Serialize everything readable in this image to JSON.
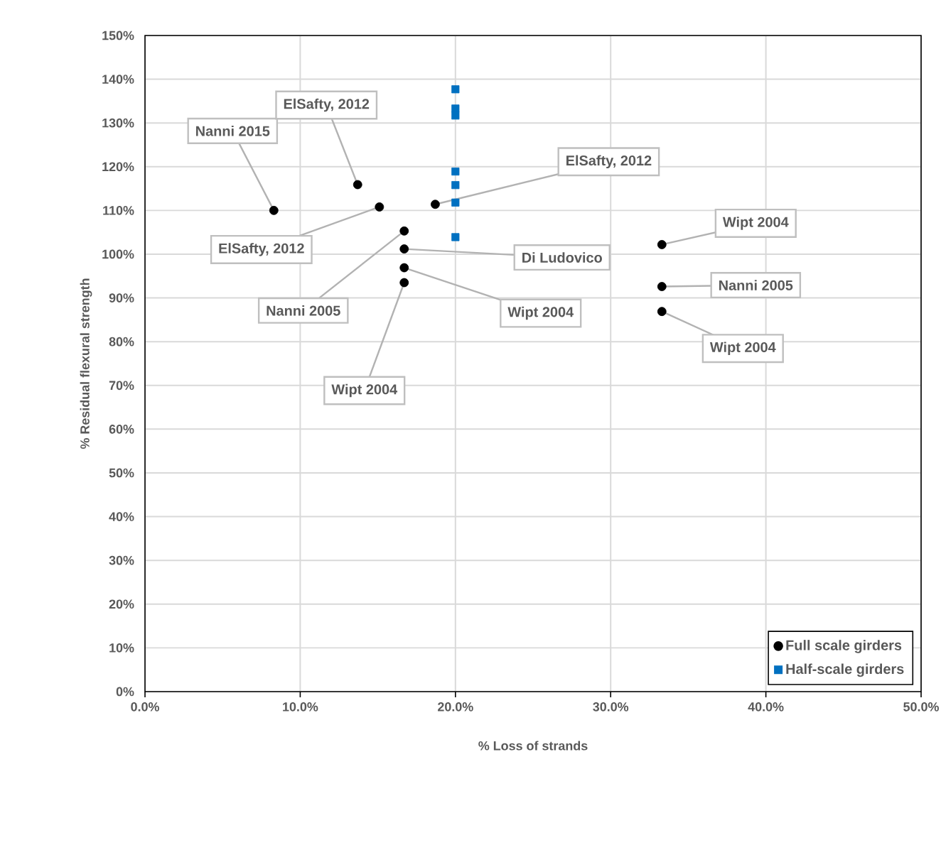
{
  "chart_data": {
    "type": "scatter",
    "xlabel": "% Loss of strands",
    "ylabel": "% Residual flexural strength",
    "xlim": [
      0,
      50
    ],
    "ylim": [
      0,
      150
    ],
    "xticks": [
      {
        "value": 0,
        "label": "0.0%"
      },
      {
        "value": 10,
        "label": "10.0%"
      },
      {
        "value": 20,
        "label": "20.0%"
      },
      {
        "value": 30,
        "label": "30.0%"
      },
      {
        "value": 40,
        "label": "40.0%"
      },
      {
        "value": 50,
        "label": "50.0%"
      }
    ],
    "yticks": [
      {
        "value": 0,
        "label": "0%"
      },
      {
        "value": 10,
        "label": "10%"
      },
      {
        "value": 20,
        "label": "20%"
      },
      {
        "value": 30,
        "label": "30%"
      },
      {
        "value": 40,
        "label": "40%"
      },
      {
        "value": 50,
        "label": "50%"
      },
      {
        "value": 60,
        "label": "60%"
      },
      {
        "value": 70,
        "label": "70%"
      },
      {
        "value": 80,
        "label": "80%"
      },
      {
        "value": 90,
        "label": "90%"
      },
      {
        "value": 100,
        "label": "100%"
      },
      {
        "value": 110,
        "label": "110%"
      },
      {
        "value": 120,
        "label": "120%"
      },
      {
        "value": 130,
        "label": "130%"
      },
      {
        "value": 140,
        "label": "140%"
      },
      {
        "value": 150,
        "label": "150%"
      }
    ],
    "grid": true,
    "legend": "bottom right",
    "series": [
      {
        "name": "Full scale girders",
        "color": "#000000",
        "marker": "circle",
        "x": [
          8.3,
          13.7,
          15.1,
          18.7,
          16.7,
          16.7,
          16.7,
          16.7,
          33.3,
          33.3,
          33.3
        ],
        "values": [
          110,
          115.9,
          110.8,
          111.4,
          105.3,
          101.2,
          96.9,
          93.5,
          102.2,
          92.6,
          86.9
        ]
      },
      {
        "name": "Half-scale girders",
        "color": "#0070c0",
        "marker": "square",
        "x": [
          20,
          20,
          20,
          20,
          20,
          20,
          20
        ],
        "values": [
          137.7,
          133.3,
          131.7,
          118.9,
          115.8,
          111.8,
          103.9
        ]
      }
    ],
    "annotations": [
      {
        "text": "Nanni 2015",
        "x": 8.3,
        "y": 110
      },
      {
        "text": "ElSafty,  2012",
        "x": 13.7,
        "y": 115.9
      },
      {
        "text": "ElSafty, 2012",
        "x": 15.1,
        "y": 110.8
      },
      {
        "text": "ElSafty, 2012",
        "x": 18.7,
        "y": 111.4
      },
      {
        "text": "Nanni 2005",
        "x": 16.7,
        "y": 105.3
      },
      {
        "text": "Di Ludovico",
        "x": 16.7,
        "y": 101.2
      },
      {
        "text": "Wipt 2004",
        "x": 16.7,
        "y": 96.9
      },
      {
        "text": "Wipt 2004",
        "x": 16.7,
        "y": 93.5
      },
      {
        "text": "Wipt 2004",
        "x": 33.3,
        "y": 102.2
      },
      {
        "text": "Nanni 2005",
        "x": 33.3,
        "y": 92.6
      },
      {
        "text": "Wipt 2004",
        "x": 33.3,
        "y": 86.9
      }
    ]
  }
}
